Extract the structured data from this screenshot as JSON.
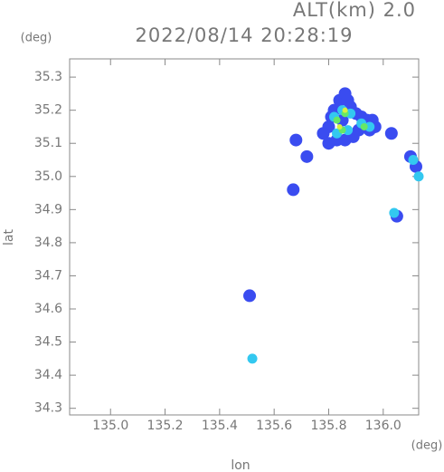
{
  "chart_data": {
    "type": "scatter",
    "title": "2022/08/14 20:28:19",
    "subtitle": "ALT(km) 2.0",
    "y_unit": "(deg)",
    "x_unit": "(deg)",
    "x_label": "lon",
    "y_label": "lat",
    "xlim": [
      134.85,
      136.13
    ],
    "ylim": [
      34.28,
      35.355
    ],
    "xticks": [
      {
        "value": 135,
        "label": "135.0"
      },
      135.2,
      135.4,
      135.6,
      135.8,
      {
        "value": 136,
        "label": "136.0"
      }
    ],
    "yticks": [
      34.3,
      34.4,
      34.5,
      34.6,
      34.7,
      34.8,
      34.9,
      {
        "value": 35,
        "label": "35.0"
      },
      35.1,
      35.2,
      35.3
    ],
    "grid": false,
    "series": [
      {
        "color": "#3a4cf0",
        "x": [
          135.8,
          135.82,
          135.84,
          135.86,
          135.87,
          135.88,
          135.9,
          135.92,
          135.94,
          135.96,
          135.97,
          135.78,
          135.8,
          135.83,
          135.86,
          135.89,
          135.85,
          135.81,
          135.91,
          135.95,
          135.68,
          135.72,
          135.67,
          136.03,
          136.1,
          136.12,
          136.05,
          135.51
        ],
        "y": [
          35.15,
          35.2,
          35.23,
          35.25,
          35.23,
          35.21,
          35.19,
          35.18,
          35.17,
          35.17,
          35.15,
          35.13,
          35.1,
          35.11,
          35.11,
          35.12,
          35.17,
          35.18,
          35.14,
          35.14,
          35.11,
          35.06,
          34.96,
          35.13,
          35.06,
          35.03,
          34.88,
          34.64
        ]
      },
      {
        "color": "#33c8f0",
        "x": [
          135.82,
          135.85,
          135.88,
          135.92,
          135.95,
          135.83,
          135.87,
          136.13,
          136.11,
          136.04,
          135.52
        ],
        "y": [
          35.18,
          35.2,
          35.19,
          35.16,
          35.15,
          35.13,
          35.14,
          35.0,
          35.05,
          34.89,
          34.45
        ]
      },
      {
        "color": "#66e866",
        "x": [
          135.83,
          135.85,
          135.86,
          135.93
        ],
        "y": [
          35.17,
          35.14,
          35.19,
          35.15
        ]
      },
      {
        "color": "#d8f040",
        "x": [
          135.84,
          135.86
        ],
        "y": [
          35.15,
          35.2
        ]
      }
    ]
  }
}
